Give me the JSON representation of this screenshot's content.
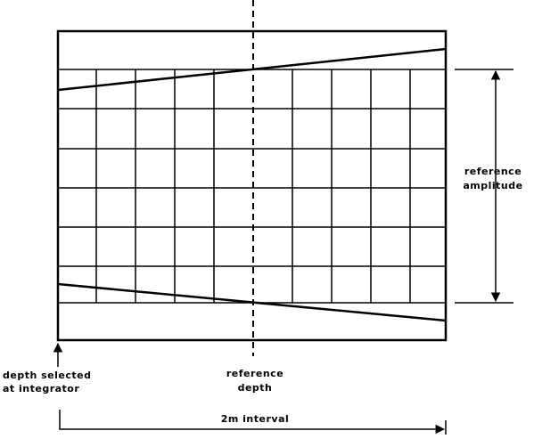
{
  "annotations": {
    "reference_amplitude": [
      "reference",
      "amplitude"
    ],
    "depth_selected": [
      "depth selected",
      "at integrator"
    ],
    "reference_depth": [
      "reference",
      "depth"
    ],
    "interval": "2m interval"
  }
}
